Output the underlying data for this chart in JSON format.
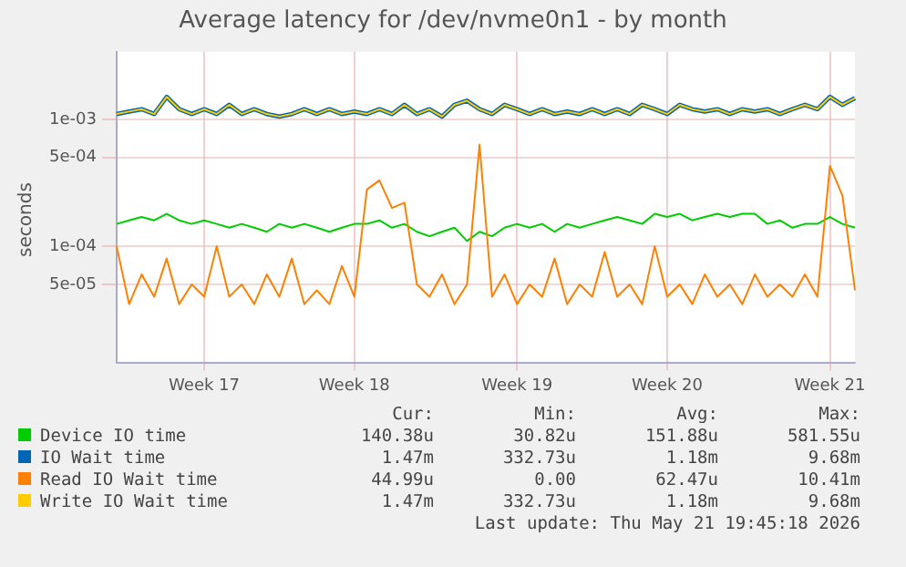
{
  "chart_data": {
    "type": "line",
    "title": "Average latency for /dev/nvme0n1 - by month",
    "ylabel": "seconds",
    "log": "y",
    "grid": true,
    "legend": "bottom",
    "marker": "none",
    "line_style": "solid",
    "categories": [
      null,
      null,
      null,
      null,
      null,
      null,
      null,
      "Week 17",
      null,
      null,
      null,
      null,
      null,
      null,
      null,
      null,
      null,
      null,
      null,
      "Week 18",
      null,
      null,
      null,
      null,
      null,
      null,
      null,
      null,
      null,
      null,
      null,
      null,
      "Week 19",
      null,
      null,
      null,
      null,
      null,
      null,
      null,
      null,
      null,
      null,
      null,
      "Week 20",
      null,
      null,
      null,
      null,
      null,
      null,
      null,
      null,
      null,
      null,
      null,
      null,
      "Week 21",
      null,
      null
    ],
    "ylim": [
      1.2e-05,
      0.0034
    ],
    "yticks": [
      {
        "value": 5e-05,
        "label": "5e-05"
      },
      {
        "value": 0.0001,
        "label": "1e-04"
      },
      {
        "value": 0.0005,
        "label": "5e-04"
      },
      {
        "value": 0.001,
        "label": "1e-03"
      }
    ],
    "series": [
      {
        "name": "Device IO time",
        "color": "#00cc00",
        "values": [
          0.00015,
          0.00016,
          0.00017,
          0.00016,
          0.00018,
          0.00016,
          0.00015,
          0.00016,
          0.00015,
          0.00014,
          0.00015,
          0.00014,
          0.00013,
          0.00015,
          0.00014,
          0.00015,
          0.00014,
          0.00013,
          0.00014,
          0.00015,
          0.00015,
          0.00016,
          0.00014,
          0.00015,
          0.00013,
          0.00012,
          0.00013,
          0.00014,
          0.00011,
          0.00013,
          0.00012,
          0.00014,
          0.00015,
          0.00014,
          0.00015,
          0.00013,
          0.00015,
          0.00014,
          0.00015,
          0.00016,
          0.00017,
          0.00016,
          0.00015,
          0.00018,
          0.00017,
          0.00018,
          0.00016,
          0.00017,
          0.00018,
          0.00017,
          0.00018,
          0.00018,
          0.00015,
          0.00016,
          0.00014,
          0.00015,
          0.00015,
          0.00017,
          0.00015,
          0.00014
        ]
      },
      {
        "name": "IO Wait time",
        "color": "#0066b3",
        "values": [
          0.0011,
          0.00115,
          0.0012,
          0.0011,
          0.0015,
          0.0012,
          0.0011,
          0.0012,
          0.0011,
          0.0013,
          0.0011,
          0.0012,
          0.0011,
          0.00105,
          0.0011,
          0.0012,
          0.0011,
          0.0012,
          0.0011,
          0.00115,
          0.0011,
          0.0012,
          0.0011,
          0.0013,
          0.0011,
          0.0012,
          0.00105,
          0.0013,
          0.0014,
          0.0012,
          0.0011,
          0.0013,
          0.0012,
          0.0011,
          0.0012,
          0.0011,
          0.00115,
          0.0011,
          0.0012,
          0.0011,
          0.0012,
          0.0011,
          0.0013,
          0.0012,
          0.0011,
          0.0013,
          0.0012,
          0.00115,
          0.0012,
          0.0011,
          0.0012,
          0.00115,
          0.0012,
          0.0011,
          0.0012,
          0.0013,
          0.0012,
          0.0015,
          0.0013,
          0.00147
        ]
      },
      {
        "name": "Read IO Wait time",
        "color": "#ff8000",
        "values": [
          0.0001,
          3.5e-05,
          6e-05,
          4e-05,
          8e-05,
          3.5e-05,
          5e-05,
          4e-05,
          0.0001,
          4e-05,
          5e-05,
          3.5e-05,
          6e-05,
          4e-05,
          8e-05,
          3.5e-05,
          4.5e-05,
          3.5e-05,
          7e-05,
          4e-05,
          0.00028,
          0.00033,
          0.0002,
          0.00022,
          5e-05,
          4e-05,
          6e-05,
          3.5e-05,
          5e-05,
          0.00063,
          4e-05,
          6e-05,
          3.5e-05,
          5e-05,
          4e-05,
          8e-05,
          3.5e-05,
          5e-05,
          4e-05,
          9e-05,
          4e-05,
          5e-05,
          3.5e-05,
          0.0001,
          4e-05,
          5e-05,
          3.5e-05,
          6e-05,
          4e-05,
          5e-05,
          3.5e-05,
          6e-05,
          4e-05,
          5e-05,
          4e-05,
          6e-05,
          4e-05,
          0.00043,
          0.00025,
          4.5e-05
        ]
      },
      {
        "name": "Write IO Wait time",
        "color": "#ffcc00",
        "values": [
          0.0011,
          0.00115,
          0.0012,
          0.0011,
          0.0015,
          0.0012,
          0.0011,
          0.0012,
          0.0011,
          0.0013,
          0.0011,
          0.0012,
          0.0011,
          0.00105,
          0.0011,
          0.0012,
          0.0011,
          0.0012,
          0.0011,
          0.00115,
          0.0011,
          0.0012,
          0.0011,
          0.0013,
          0.0011,
          0.0012,
          0.00105,
          0.0013,
          0.0014,
          0.0012,
          0.0011,
          0.0013,
          0.0012,
          0.0011,
          0.0012,
          0.0011,
          0.00115,
          0.0011,
          0.0012,
          0.0011,
          0.0012,
          0.0011,
          0.0013,
          0.0012,
          0.0011,
          0.0013,
          0.0012,
          0.00115,
          0.0012,
          0.0011,
          0.0012,
          0.00115,
          0.0012,
          0.0011,
          0.0012,
          0.0013,
          0.0012,
          0.0015,
          0.0013,
          0.00147
        ]
      }
    ],
    "annotations": [
      "Cur:",
      "Min:",
      "Avg:",
      "Max:",
      "140.38u",
      "30.82u",
      "151.88u",
      "581.55u",
      "1.47m",
      "332.73u",
      "1.18m",
      "9.68m",
      "44.99u",
      "0.00",
      "62.47u",
      "10.41m",
      "1.47m",
      "332.73u",
      "1.18m",
      "9.68m",
      "Last update: Thu May 21 19:45:18 2026"
    ]
  }
}
